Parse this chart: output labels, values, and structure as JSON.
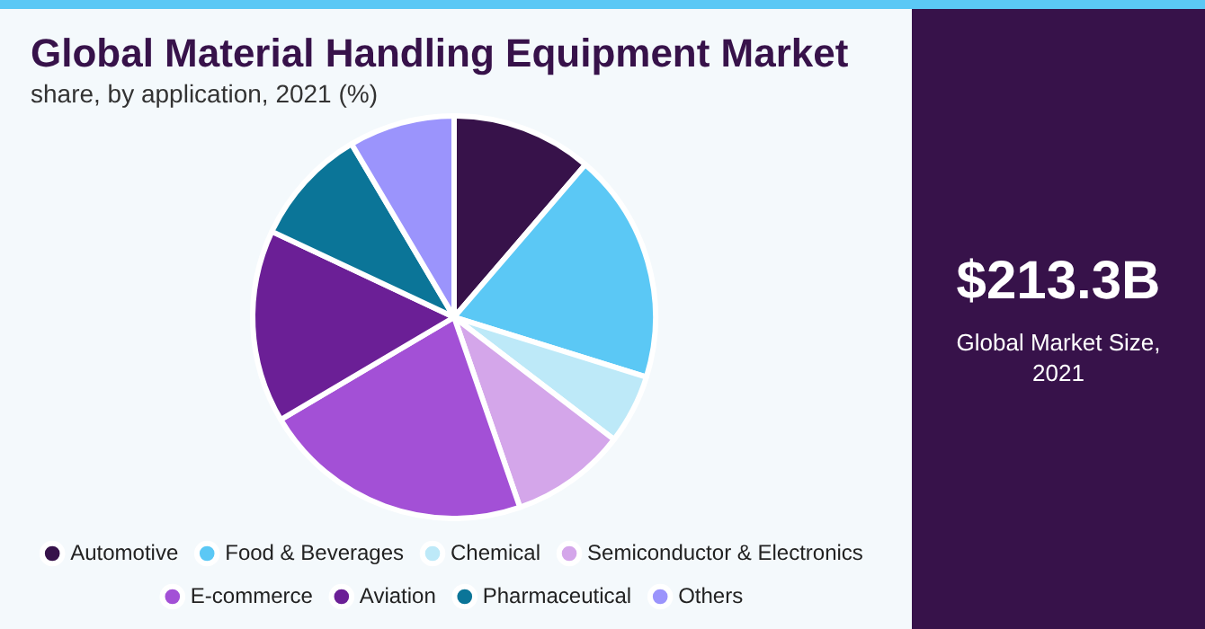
{
  "chart_data": {
    "type": "pie",
    "title": "Global Material Handling Equipment Market",
    "subtitle": "share, by application, 2021 (%)",
    "categories": [
      "Automotive",
      "Food & Beverages",
      "Chemical",
      "Semiconductor & Electronics",
      "E-commerce",
      "Aviation",
      "Pharmaceutical",
      "Others"
    ],
    "values": [
      11.3,
      18.5,
      5.6,
      9.3,
      21.8,
      15.5,
      9.5,
      8.5
    ],
    "colors": [
      "#37124a",
      "#5bc8f5",
      "#bde9f8",
      "#d4a6ea",
      "#a350d6",
      "#6b1f96",
      "#0b7598",
      "#9b94fc"
    ],
    "legend": "bottom",
    "annotations": [
      "$213.3B",
      "Global Market Size, 2021"
    ]
  }
}
